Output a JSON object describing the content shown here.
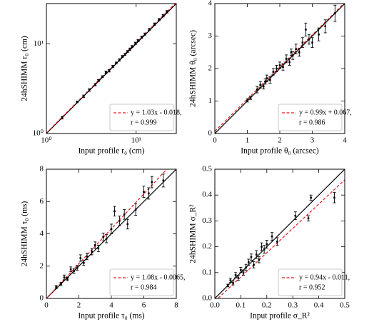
{
  "chart_data": [
    {
      "type": "scatter",
      "log": true,
      "xlabel": "Input profile r₀ (cm)",
      "ylabel": "24hSHIMM r₀ (cm)",
      "xlim": [
        1,
        28
      ],
      "ylim": [
        1,
        28
      ],
      "xticks": [
        {
          "value": 1,
          "label": "10⁰"
        },
        {
          "value": 10,
          "label": "10¹"
        }
      ],
      "yticks": [
        {
          "value": 1,
          "label": "10⁰"
        },
        {
          "value": 10,
          "label": "10¹"
        }
      ],
      "x": [
        1.5,
        2.2,
        2.6,
        3.0,
        3.5,
        3.8,
        4.2,
        4.6,
        5.0,
        5.5,
        6.0,
        6.5,
        7.0,
        7.5,
        8.0,
        8.5,
        9.0,
        9.8,
        10.5,
        11.5,
        12.5,
        14,
        16,
        18,
        20,
        22
      ],
      "values": [
        1.5,
        2.25,
        2.6,
        3.05,
        3.5,
        3.9,
        4.3,
        4.8,
        5.0,
        5.6,
        6.1,
        6.6,
        7.2,
        7.6,
        8.2,
        8.7,
        9.3,
        10.1,
        10.8,
        11.8,
        12.8,
        14.4,
        16.5,
        18.6,
        20.5,
        22.7
      ],
      "errors": [
        0.05,
        0.05,
        0.08,
        0.1,
        0.1,
        0.1,
        0.1,
        0.15,
        0.15,
        0.15,
        0.15,
        0.2,
        0.2,
        0.2,
        0.2,
        0.25,
        0.25,
        0.3,
        0.3,
        0.35,
        0.35,
        0.4,
        0.5,
        0.5,
        0.6,
        0.7
      ],
      "fit": {
        "slope": 1.03,
        "intercept": -0.018
      },
      "legend": [
        "y = 1.03x - 0.018,",
        "r = 0.999"
      ],
      "point_color": "#000000",
      "fit_color": "#e41a1c"
    },
    {
      "type": "scatter",
      "log": false,
      "xlabel": "Input profile θ₀ (arcsec)",
      "ylabel": "24hSHIMM θ₀ (arcsec)",
      "xlim": [
        0,
        4
      ],
      "ylim": [
        0,
        4
      ],
      "xticks": [
        0,
        1,
        2,
        3,
        4
      ],
      "yticks": [
        0,
        1,
        2,
        3,
        4
      ],
      "x": [
        1.0,
        1.1,
        1.3,
        1.4,
        1.5,
        1.6,
        1.7,
        1.8,
        1.9,
        2.0,
        2.1,
        2.2,
        2.3,
        2.4,
        2.5,
        2.6,
        2.7,
        2.8,
        2.9,
        3.0,
        3.2,
        3.4,
        3.7,
        2.35,
        1.55
      ],
      "values": [
        1.02,
        1.1,
        1.35,
        1.5,
        1.45,
        1.7,
        1.65,
        1.9,
        2.0,
        2.1,
        2.05,
        2.3,
        2.2,
        2.4,
        2.6,
        2.5,
        2.8,
        3.2,
        2.9,
        2.8,
        3.05,
        3.3,
        3.7,
        2.5,
        1.6
      ],
      "errors": [
        0.05,
        0.05,
        0.1,
        0.1,
        0.08,
        0.1,
        0.1,
        0.1,
        0.1,
        0.1,
        0.1,
        0.12,
        0.1,
        0.12,
        0.15,
        0.12,
        0.15,
        0.2,
        0.15,
        0.15,
        0.2,
        0.2,
        0.25,
        0.1,
        0.08
      ],
      "fit": {
        "slope": 0.99,
        "intercept": 0.067
      },
      "legend": [
        "y = 0.99x + 0.067,",
        "r = 0.986"
      ],
      "point_color": "#000000",
      "fit_color": "#e41a1c"
    },
    {
      "type": "scatter",
      "log": false,
      "xlabel": "Input profile τ₀ (ms)",
      "ylabel": "24hSHIMM τ₀ (ms)",
      "xlim": [
        0,
        8
      ],
      "ylim": [
        0,
        8
      ],
      "xticks": [
        0,
        2,
        4,
        6,
        8
      ],
      "yticks": [
        0,
        2,
        4,
        6,
        8
      ],
      "x": [
        0.6,
        0.9,
        1.1,
        1.3,
        1.5,
        1.7,
        1.9,
        2.1,
        2.3,
        2.5,
        2.8,
        3.0,
        3.2,
        3.5,
        3.7,
        4.0,
        4.2,
        4.5,
        4.8,
        5.0,
        5.5,
        6.0,
        6.3,
        6.5,
        7.2
      ],
      "values": [
        0.7,
        0.9,
        1.3,
        1.2,
        1.8,
        1.7,
        1.9,
        2.5,
        2.2,
        2.6,
        2.9,
        3.3,
        3.1,
        3.8,
        3.7,
        4.3,
        5.4,
        4.8,
        5.2,
        4.6,
        5.5,
        6.6,
        6.5,
        7.2,
        7.3
      ],
      "errors": [
        0.1,
        0.1,
        0.15,
        0.1,
        0.15,
        0.15,
        0.15,
        0.2,
        0.15,
        0.2,
        0.2,
        0.2,
        0.2,
        0.25,
        0.25,
        0.3,
        0.3,
        0.3,
        0.3,
        0.3,
        0.35,
        0.35,
        0.35,
        0.35,
        0.4
      ],
      "fit": {
        "slope": 1.08,
        "intercept": -0.0065
      },
      "legend": [
        "y = 1.08x - 0.0065,",
        "r = 0.984"
      ],
      "point_color": "#000000",
      "fit_color": "#e41a1c"
    },
    {
      "type": "scatter",
      "log": false,
      "xlabel": "Input profile σ_R²",
      "ylabel": "24hSHIMM σ_R²",
      "xlim": [
        0,
        0.5
      ],
      "ylim": [
        0,
        0.5
      ],
      "xticks": [
        {
          "value": 0,
          "label": "0.0"
        },
        0.1,
        0.2,
        0.3,
        0.4,
        0.5
      ],
      "yticks": [
        {
          "value": 0,
          "label": "0.0"
        },
        0.1,
        0.2,
        0.3,
        0.4,
        0.5
      ],
      "x": [
        0.05,
        0.06,
        0.07,
        0.08,
        0.09,
        0.1,
        0.11,
        0.12,
        0.13,
        0.15,
        0.16,
        0.17,
        0.19,
        0.2,
        0.22,
        0.24,
        0.31,
        0.36,
        0.37,
        0.46,
        0.14,
        0.18
      ],
      "values": [
        0.05,
        0.07,
        0.06,
        0.09,
        0.08,
        0.11,
        0.1,
        0.12,
        0.14,
        0.13,
        0.17,
        0.15,
        0.19,
        0.21,
        0.24,
        0.22,
        0.32,
        0.31,
        0.39,
        0.39,
        0.16,
        0.2
      ],
      "errors": [
        0.005,
        0.008,
        0.008,
        0.01,
        0.01,
        0.01,
        0.01,
        0.012,
        0.012,
        0.012,
        0.015,
        0.012,
        0.015,
        0.015,
        0.015,
        0.015,
        0.015,
        0.01,
        0.01,
        0.02,
        0.012,
        0.015
      ],
      "fit": {
        "slope": 0.94,
        "intercept": -0.011
      },
      "legend": [
        "y = 0.94x - 0.011,",
        "r = 0.952"
      ],
      "point_color": "#000000",
      "fit_color": "#e41a1c"
    }
  ]
}
